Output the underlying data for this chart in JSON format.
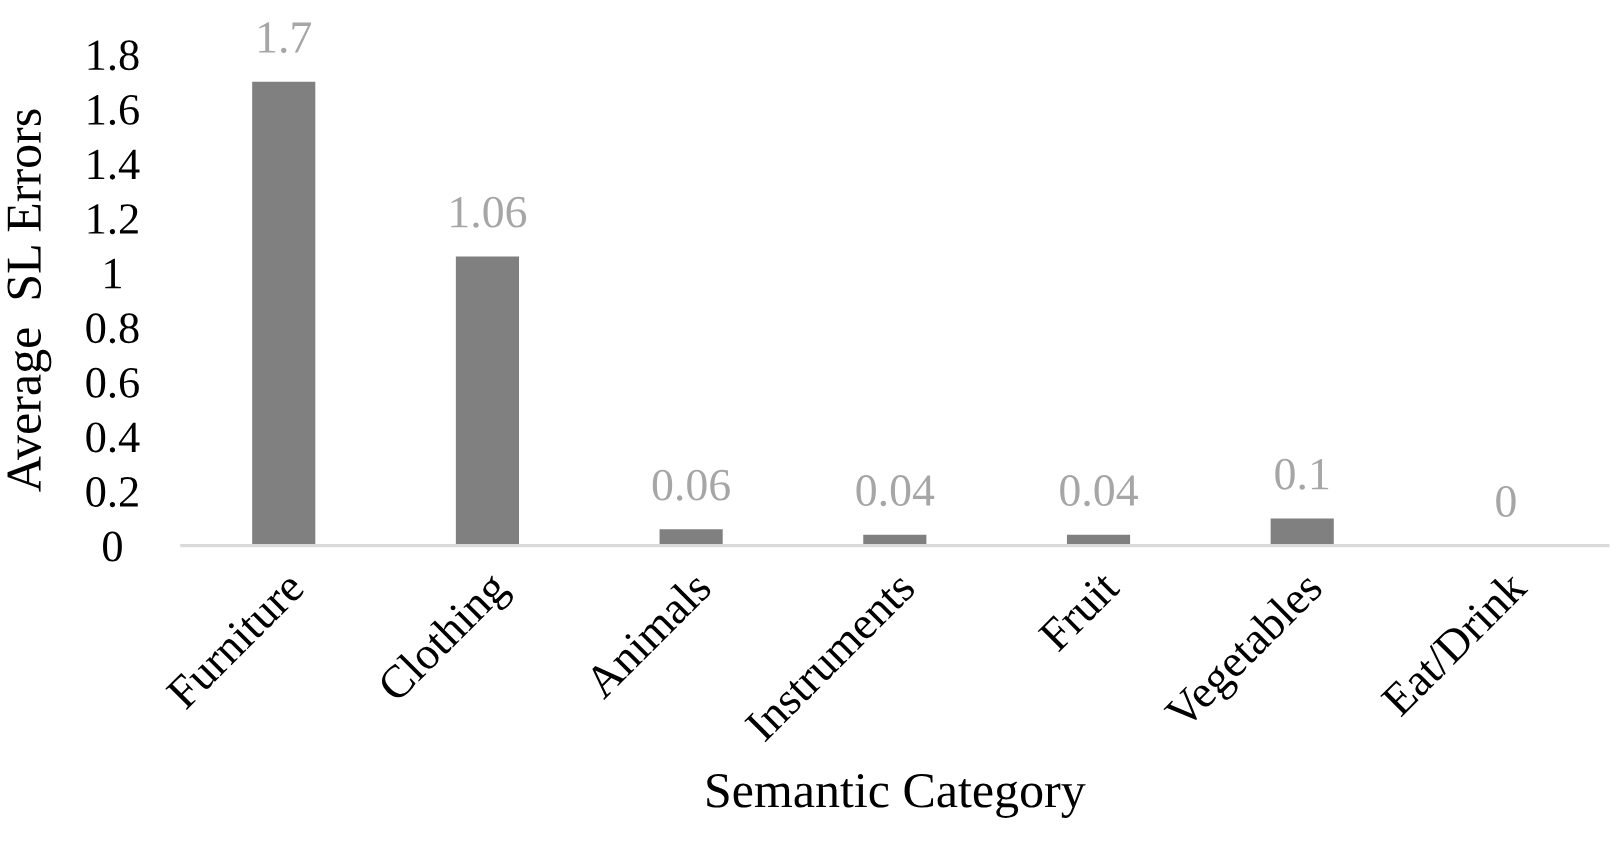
{
  "chart_data": {
    "type": "bar",
    "xlabel": "Semantic Category",
    "ylabel": "Average  SL Errors",
    "categories": [
      "Furniture",
      "Clothing",
      "Animals",
      "Instruments",
      "Fruit",
      "Vegetables",
      "Eat/Drink"
    ],
    "values": [
      1.7,
      1.06,
      0.06,
      0.04,
      0.04,
      0.1,
      0
    ],
    "color": "#808080",
    "data_labels": true,
    "ylim": [
      0,
      1.8
    ],
    "yticks": [
      0,
      0.2,
      0.4,
      0.6,
      0.8,
      1,
      1.2,
      1.4,
      1.6,
      1.8
    ],
    "grid": false,
    "legend": false
  }
}
